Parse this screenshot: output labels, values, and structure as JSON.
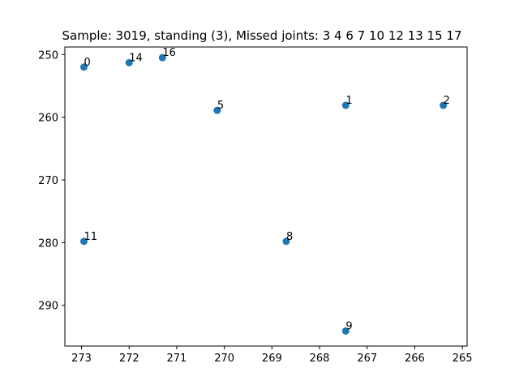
{
  "chart_data": {
    "type": "scatter",
    "title": "Sample: 3019, standing (3), Missed joints: 3  4  6  7  10  12  13  15  17",
    "xlabel": "",
    "ylabel": "",
    "x_inverted": true,
    "y_inverted": true,
    "xlim": [
      273.35,
      264.9
    ],
    "ylim": [
      296.5,
      248.8
    ],
    "xticks": [
      273,
      272,
      271,
      270,
      269,
      268,
      267,
      266,
      265
    ],
    "yticks": [
      250,
      260,
      270,
      280,
      290
    ],
    "grid": false,
    "marker_color": "#1f77b4",
    "points": [
      {
        "label": "0",
        "x": 272.95,
        "y": 252.0
      },
      {
        "label": "14",
        "x": 272.0,
        "y": 251.3
      },
      {
        "label": "16",
        "x": 271.3,
        "y": 250.5
      },
      {
        "label": "5",
        "x": 270.15,
        "y": 258.9
      },
      {
        "label": "1",
        "x": 267.45,
        "y": 258.1
      },
      {
        "label": "2",
        "x": 265.4,
        "y": 258.1
      },
      {
        "label": "11",
        "x": 272.95,
        "y": 279.8
      },
      {
        "label": "8",
        "x": 268.7,
        "y": 279.8
      },
      {
        "label": "9",
        "x": 267.45,
        "y": 294.1
      }
    ]
  }
}
